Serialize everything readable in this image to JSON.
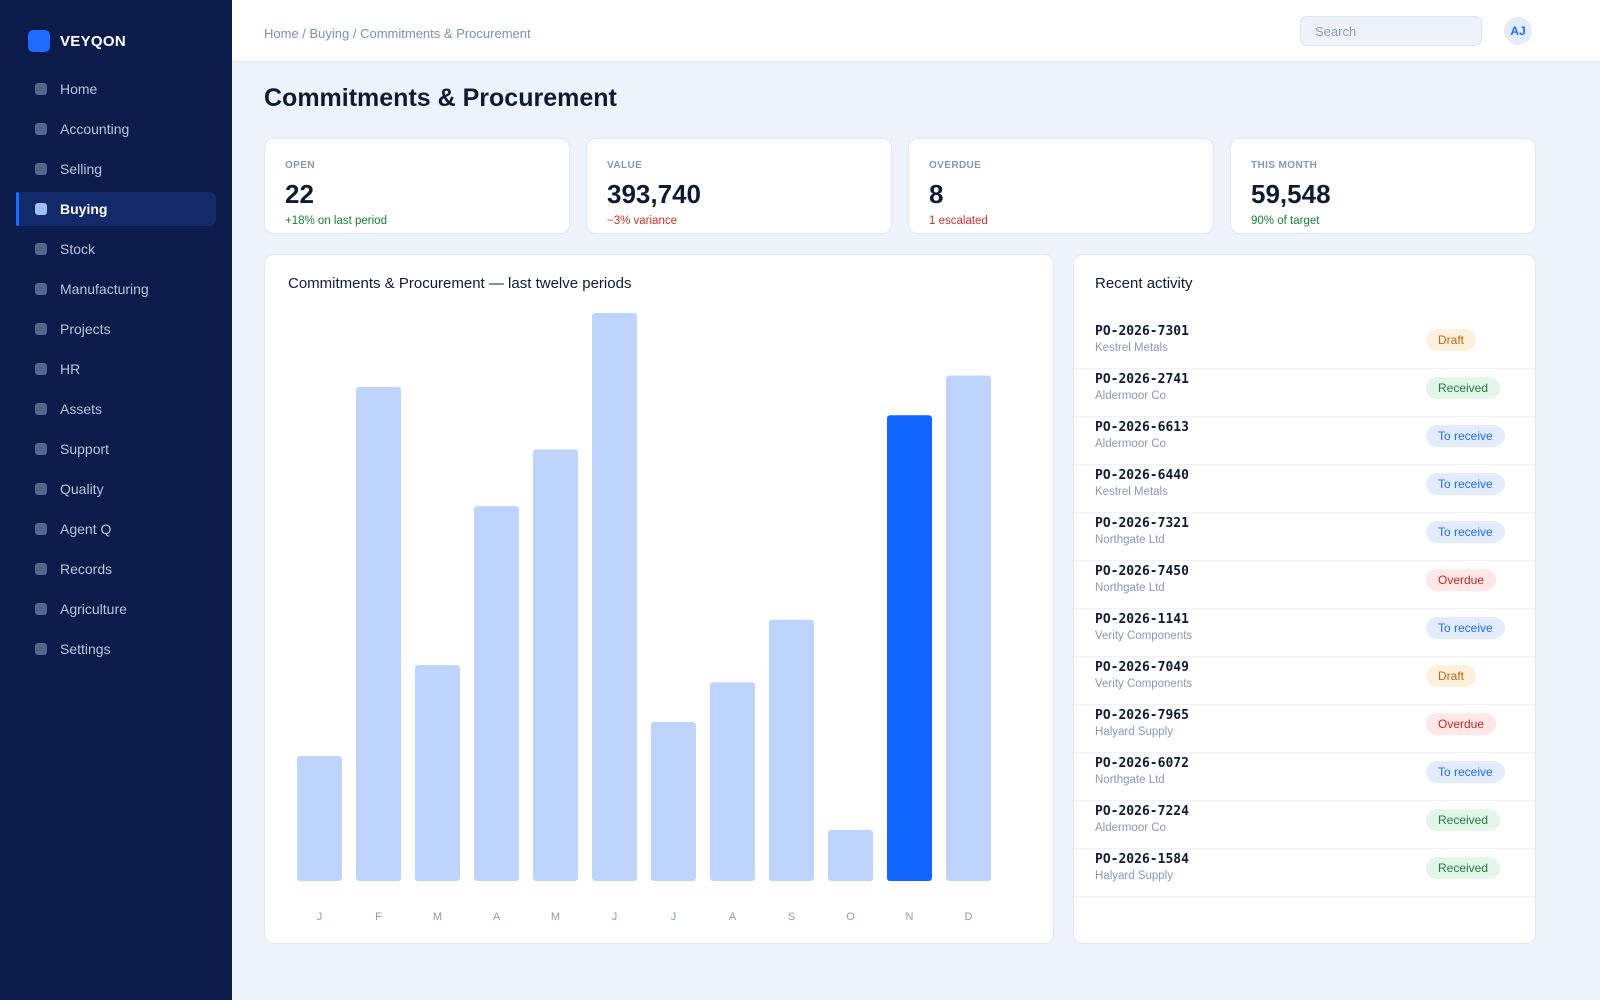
{
  "app": {
    "name": "VEYQON"
  },
  "sidebar": {
    "items": [
      {
        "label": "Home",
        "active": false
      },
      {
        "label": "Accounting",
        "active": false
      },
      {
        "label": "Selling",
        "active": false
      },
      {
        "label": "Buying",
        "active": true
      },
      {
        "label": "Stock",
        "active": false
      },
      {
        "label": "Manufacturing",
        "active": false
      },
      {
        "label": "Projects",
        "active": false
      },
      {
        "label": "HR",
        "active": false
      },
      {
        "label": "Assets",
        "active": false
      },
      {
        "label": "Support",
        "active": false
      },
      {
        "label": "Quality",
        "active": false
      },
      {
        "label": "Agent Q",
        "active": false
      },
      {
        "label": "Records",
        "active": false
      },
      {
        "label": "Agriculture",
        "active": false
      },
      {
        "label": "Settings",
        "active": false
      }
    ]
  },
  "header": {
    "breadcrumb": "Home / Buying / Commitments & Procurement",
    "search_placeholder": "Search",
    "search_value": "",
    "avatar_initials": "AJ"
  },
  "page": {
    "title": "Commitments & Procurement"
  },
  "kpis": [
    {
      "label": "OPEN",
      "value": "22",
      "delta": "+18% on last period",
      "tone": "pos"
    },
    {
      "label": "VALUE",
      "value": "393,740",
      "delta": "−3% variance",
      "tone": "neg"
    },
    {
      "label": "OVERDUE",
      "value": "8",
      "delta": "1 escalated",
      "tone": "neg"
    },
    {
      "label": "THIS MONTH",
      "value": "59,548",
      "delta": "90% of target",
      "tone": "pos"
    }
  ],
  "chart": {
    "title": "Commitments & Procurement — last twelve periods"
  },
  "chart_data": {
    "type": "bar",
    "categories": [
      "J",
      "F",
      "M",
      "A",
      "M",
      "J",
      "J",
      "A",
      "S",
      "O",
      "N",
      "D"
    ],
    "values": [
      22,
      87,
      38,
      66,
      76,
      100,
      28,
      35,
      46,
      9,
      82,
      89
    ],
    "highlight_index": 10,
    "ylim": [
      0,
      100
    ],
    "grid": false,
    "colors": {
      "bar": "#bfd4fd",
      "highlight": "#1166ff"
    }
  },
  "activity": {
    "title": "Recent activity",
    "items": [
      {
        "id": "PO-2026-7301",
        "party": "Kestrel Metals",
        "status": "Draft",
        "kind": "draft"
      },
      {
        "id": "PO-2026-2741",
        "party": "Aldermoor Co",
        "status": "Received",
        "kind": "received"
      },
      {
        "id": "PO-2026-6613",
        "party": "Aldermoor Co",
        "status": "To receive",
        "kind": "receive"
      },
      {
        "id": "PO-2026-6440",
        "party": "Kestrel Metals",
        "status": "To receive",
        "kind": "receive"
      },
      {
        "id": "PO-2026-7321",
        "party": "Northgate Ltd",
        "status": "To receive",
        "kind": "receive"
      },
      {
        "id": "PO-2026-7450",
        "party": "Northgate Ltd",
        "status": "Overdue",
        "kind": "overdue"
      },
      {
        "id": "PO-2026-1141",
        "party": "Verity Components",
        "status": "To receive",
        "kind": "receive"
      },
      {
        "id": "PO-2026-7049",
        "party": "Verity Components",
        "status": "Draft",
        "kind": "draft"
      },
      {
        "id": "PO-2026-7965",
        "party": "Halyard Supply",
        "status": "Overdue",
        "kind": "overdue"
      },
      {
        "id": "PO-2026-6072",
        "party": "Northgate Ltd",
        "status": "To receive",
        "kind": "receive"
      },
      {
        "id": "PO-2026-7224",
        "party": "Aldermoor Co",
        "status": "Received",
        "kind": "received"
      },
      {
        "id": "PO-2026-1584",
        "party": "Halyard Supply",
        "status": "Received",
        "kind": "received"
      }
    ]
  }
}
